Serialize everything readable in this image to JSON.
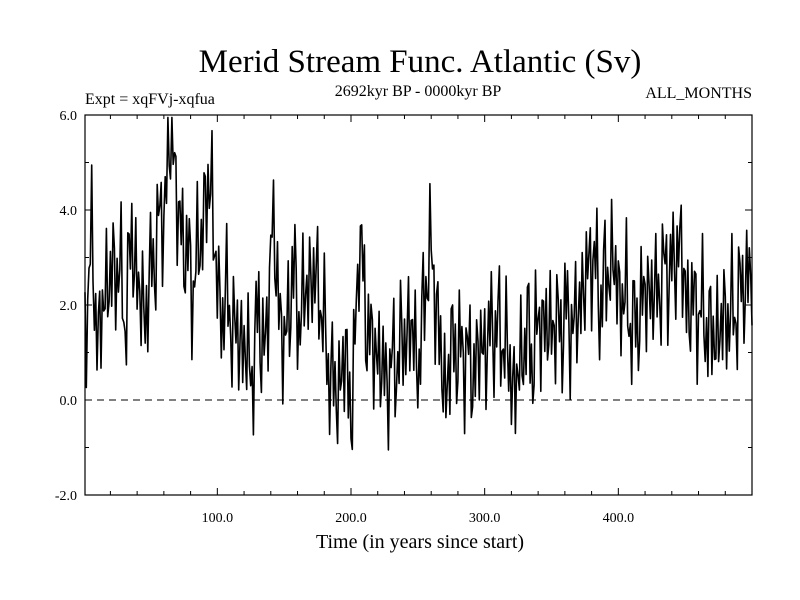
{
  "chart_data": {
    "type": "line",
    "title": "Merid Stream Func. Atlantic (Sv)",
    "subtitle_left": "Expt = xqFVj-xqfua",
    "subtitle_center": "2692kyr BP - 0000kyr BP",
    "subtitle_right": "ALL_MONTHS",
    "xlabel": "Time (in years since start)",
    "ylabel": "",
    "xlim": [
      1,
      500
    ],
    "ylim": [
      -2.0,
      6.0
    ],
    "x_ticks": [
      100,
      200,
      300,
      400
    ],
    "x_tick_labels": [
      "100.0",
      "200.0",
      "300.0",
      "400.0"
    ],
    "y_ticks": [
      -2,
      0,
      2,
      4,
      6
    ],
    "y_tick_labels": [
      "-2.0",
      "0.0",
      "2.0",
      "4.0",
      "6.0"
    ],
    "reference_line": {
      "y": 0.0,
      "style": "dashed"
    },
    "grid": false,
    "series": [
      {
        "name": "Merid Stream Func. Atlantic",
        "x_start": 1,
        "x_step": 5,
        "values": [
          1.6,
          3.3,
          1.1,
          2.4,
          2.6,
          2.9,
          1.7,
          3.5,
          2.3,
          1.8,
          2.8,
          3.6,
          4.2,
          5.9,
          3.7,
          3.3,
          2.4,
          3.1,
          4.2,
          4.5,
          1.8,
          2.2,
          1.6,
          1.3,
          1.1,
          0.5,
          1.9,
          0.8,
          3.9,
          2.0,
          1.0,
          2.8,
          1.7,
          2.3,
          2.6,
          2.4,
          1.2,
          0.3,
          0.2,
          1.0,
          -0.4,
          3.6,
          1.8,
          1.1,
          0.9,
          0.4,
          0.7,
          1.0,
          1.4,
          1.5,
          0.6,
          2.7,
          3.0,
          1.2,
          0.1,
          1.3,
          0.9,
          1.1,
          0.5,
          1.1,
          1.1,
          1.6,
          1.4,
          1.2,
          0.2,
          0.6,
          1.5,
          0.9,
          1.7,
          1.5,
          1.6,
          1.5,
          1.8,
          1.5,
          2.0,
          2.6,
          3.1,
          2.1,
          2.6,
          3.0,
          2.1,
          2.2,
          1.4,
          1.9,
          2.3,
          2.2,
          2.4,
          2.8,
          2.7,
          3.4,
          2.0,
          2.0,
          1.9,
          1.6,
          1.3,
          1.5,
          1.8,
          1.8,
          2.2,
          2.6
        ]
      }
    ]
  }
}
